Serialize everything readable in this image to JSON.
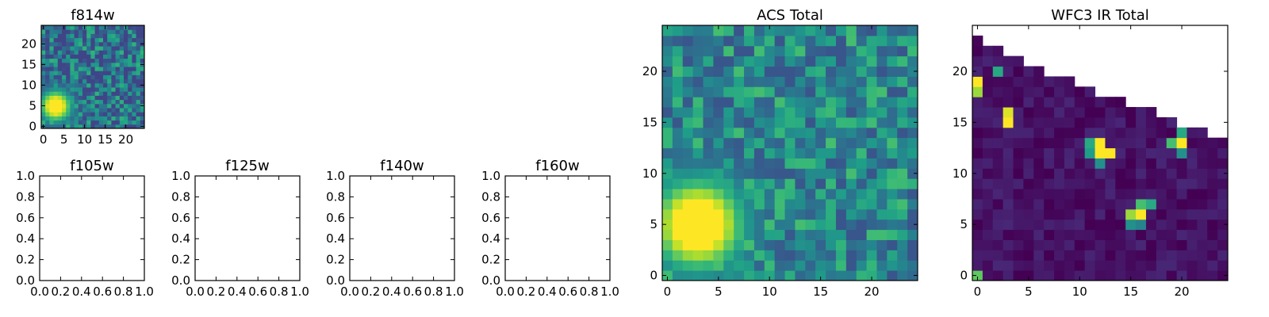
{
  "colors": {
    "colormap": "viridis",
    "viridis_stops": [
      "#440154",
      "#482878",
      "#3e4989",
      "#31688e",
      "#26828e",
      "#1f9e89",
      "#35b779",
      "#6ece58",
      "#b5de2b",
      "#fde725"
    ],
    "axes_edge": "#000000",
    "axes_face": "#ffffff"
  },
  "chart_data": [
    {
      "type": "heatmap",
      "title": "f814w",
      "size": 25,
      "colormap": "viridis",
      "xticks": [
        0,
        5,
        10,
        15,
        20
      ],
      "yticks": [
        0,
        5,
        10,
        15,
        20
      ],
      "xlim": [
        -0.5,
        24.5
      ],
      "ylim": [
        -0.5,
        24.5
      ],
      "background_level": 0.35,
      "noise_level": 0.3,
      "bright_sources": [
        {
          "x": 3,
          "y": 5,
          "peak": 1.0,
          "radius": 2.6
        }
      ]
    },
    {
      "type": "heatmap",
      "title": "f105w",
      "empty": true,
      "xticks": [
        0.0,
        0.2,
        0.4,
        0.6,
        0.8,
        1.0
      ],
      "yticks": [
        0.0,
        0.2,
        0.4,
        0.6,
        0.8,
        1.0
      ],
      "xlim": [
        0,
        1
      ],
      "ylim": [
        0,
        1
      ]
    },
    {
      "type": "heatmap",
      "title": "f125w",
      "empty": true,
      "xticks": [
        0.0,
        0.2,
        0.4,
        0.6,
        0.8,
        1.0
      ],
      "yticks": [
        0.0,
        0.2,
        0.4,
        0.6,
        0.8,
        1.0
      ],
      "xlim": [
        0,
        1
      ],
      "ylim": [
        0,
        1
      ]
    },
    {
      "type": "heatmap",
      "title": "f140w",
      "empty": true,
      "xticks": [
        0.0,
        0.2,
        0.4,
        0.6,
        0.8,
        1.0
      ],
      "yticks": [
        0.0,
        0.2,
        0.4,
        0.6,
        0.8,
        1.0
      ],
      "xlim": [
        0,
        1
      ],
      "ylim": [
        0,
        1
      ]
    },
    {
      "type": "heatmap",
      "title": "f160w",
      "empty": true,
      "xticks": [
        0.0,
        0.2,
        0.4,
        0.6,
        0.8,
        1.0
      ],
      "yticks": [
        0.0,
        0.2,
        0.4,
        0.6,
        0.8,
        1.0
      ],
      "xlim": [
        0,
        1
      ],
      "ylim": [
        0,
        1
      ]
    },
    {
      "type": "heatmap",
      "title": "ACS Total",
      "size": 25,
      "colormap": "viridis",
      "xticks": [
        0,
        5,
        10,
        15,
        20
      ],
      "yticks": [
        0,
        5,
        10,
        15,
        20
      ],
      "xlim": [
        -0.5,
        24.5
      ],
      "ylim": [
        -0.5,
        24.5
      ],
      "background_level": 0.45,
      "noise_level": 0.25,
      "bright_sources": [
        {
          "x": 3,
          "y": 5,
          "peak": 1.0,
          "radius": 3.0
        }
      ]
    },
    {
      "type": "heatmap",
      "title": "WFC3 IR Total",
      "size": 25,
      "colormap": "viridis",
      "xticks": [
        0,
        5,
        10,
        15,
        20
      ],
      "yticks": [
        0,
        5,
        10,
        15,
        20
      ],
      "xlim": [
        -0.5,
        24.5
      ],
      "ylim": [
        -0.5,
        24.5
      ],
      "background_level": 0.05,
      "noise_level": 0.06,
      "masked_region": "upper-right triangle (no data)",
      "mask_top_row_by_column": [
        23,
        22,
        22,
        21,
        21,
        20,
        20,
        19,
        19,
        19,
        18,
        18,
        17,
        17,
        17,
        16,
        16,
        16,
        15,
        15,
        14,
        14,
        14,
        13,
        13
      ],
      "bright_sources": [
        {
          "x": 0,
          "y": 19,
          "peak": 1.0
        },
        {
          "x": 0,
          "y": 18,
          "peak": 0.85
        },
        {
          "x": 0,
          "y": 0,
          "peak": 0.75
        },
        {
          "x": 2,
          "y": 20,
          "peak": 0.6
        },
        {
          "x": 3,
          "y": 15,
          "peak": 1.0
        },
        {
          "x": 3,
          "y": 16,
          "peak": 0.95
        },
        {
          "x": 11,
          "y": 13,
          "peak": 0.6
        },
        {
          "x": 12,
          "y": 13,
          "peak": 1.0
        },
        {
          "x": 12,
          "y": 12,
          "peak": 1.0
        },
        {
          "x": 13,
          "y": 12,
          "peak": 1.0
        },
        {
          "x": 11,
          "y": 12,
          "peak": 0.55
        },
        {
          "x": 12,
          "y": 11,
          "peak": 0.5
        },
        {
          "x": 15,
          "y": 6,
          "peak": 0.85
        },
        {
          "x": 16,
          "y": 6,
          "peak": 1.0
        },
        {
          "x": 16,
          "y": 7,
          "peak": 0.7
        },
        {
          "x": 17,
          "y": 7,
          "peak": 0.6
        },
        {
          "x": 15,
          "y": 5,
          "peak": 0.5
        },
        {
          "x": 16,
          "y": 5,
          "peak": 0.45
        },
        {
          "x": 19,
          "y": 13,
          "peak": 0.7
        },
        {
          "x": 20,
          "y": 13,
          "peak": 1.0
        },
        {
          "x": 20,
          "y": 14,
          "peak": 0.6
        },
        {
          "x": 20,
          "y": 12,
          "peak": 0.5
        }
      ]
    }
  ]
}
